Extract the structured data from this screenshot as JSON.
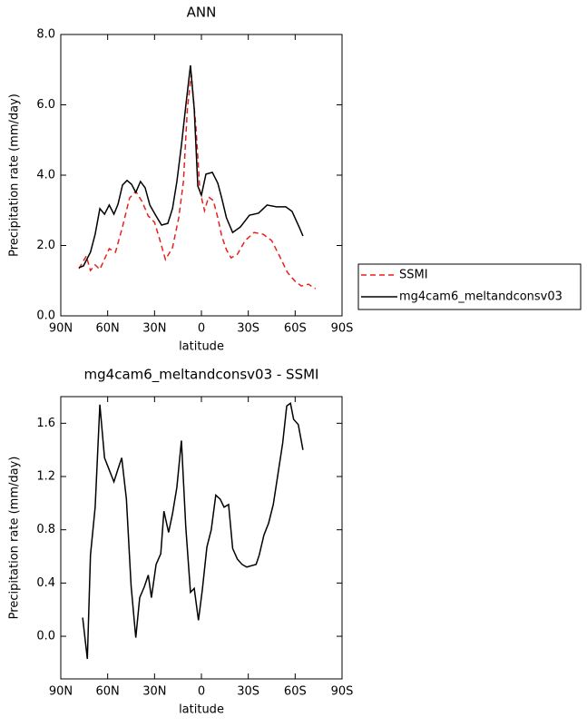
{
  "chart_data": [
    {
      "type": "line",
      "title": "ANN",
      "x_label": "latitude",
      "y_label": "Precipitation rate (mm/day)",
      "xlim": [
        90,
        -90
      ],
      "ylim": [
        0,
        8
      ],
      "xticks": [
        {
          "value": 90,
          "label": "90N"
        },
        {
          "value": 60,
          "label": "60N"
        },
        {
          "value": 30,
          "label": "30N"
        },
        0,
        {
          "value": -30,
          "label": "30S"
        },
        {
          "value": -60,
          "label": "60S"
        },
        {
          "value": -90,
          "label": "90S"
        }
      ],
      "yticks": [
        {
          "value": 0,
          "label": "0.0"
        },
        {
          "value": 2,
          "label": "2.0"
        },
        {
          "value": 4,
          "label": "4.0"
        },
        {
          "value": 6,
          "label": "6.0"
        },
        {
          "value": 8,
          "label": "8.0"
        }
      ],
      "legend": "right",
      "series": [
        {
          "name": "SSMI",
          "color": "#e8201c",
          "dash": true,
          "x": [
            78.4,
            73.7,
            71,
            68,
            65,
            59,
            55,
            50.5,
            46,
            42,
            38,
            34,
            30,
            27,
            23,
            18.5,
            14.5,
            11.5,
            9,
            6.5,
            3.5,
            1,
            -2,
            -4.6,
            -7.6,
            -10.5,
            -13,
            -16,
            -19,
            -23,
            -28,
            -33.7,
            -39.5,
            -45,
            -50,
            -55,
            -60,
            -64,
            -68.5,
            -73
          ],
          "values": [
            1.34,
            1.7,
            1.29,
            1.45,
            1.32,
            1.91,
            1.81,
            2.53,
            3.35,
            3.54,
            3.25,
            2.84,
            2.66,
            2.22,
            1.6,
            1.94,
            2.79,
            3.82,
            5.88,
            6.86,
            5.37,
            3.56,
            2.99,
            3.38,
            3.28,
            2.79,
            2.27,
            1.88,
            1.65,
            1.75,
            2.14,
            2.37,
            2.32,
            2.14,
            1.7,
            1.24,
            0.98,
            0.85,
            0.9,
            0.77
          ]
        },
        {
          "name": "mg4cam6_meltandconsv03",
          "color": "#000000",
          "dash": false,
          "x": [
            78.4,
            75.5,
            71,
            68,
            65,
            62,
            59,
            56,
            53.4,
            50.5,
            47.6,
            44.7,
            42,
            39,
            36,
            33,
            29,
            25.5,
            21.5,
            18.5,
            15.7,
            12.8,
            9.9,
            7,
            4.6,
            2.3,
            0,
            -2.9,
            -7,
            -10.5,
            -13,
            -16,
            -20,
            -25,
            -30.7,
            -36.6,
            -42,
            -48,
            -54,
            -58,
            -62.5,
            -65
          ],
          "values": [
            1.37,
            1.42,
            1.81,
            2.32,
            3.05,
            2.89,
            3.15,
            2.89,
            3.17,
            3.72,
            3.85,
            3.74,
            3.51,
            3.82,
            3.64,
            3.15,
            2.84,
            2.58,
            2.63,
            3.05,
            3.82,
            4.85,
            6.01,
            7.12,
            5.88,
            3.69,
            3.43,
            4.03,
            4.08,
            3.77,
            3.35,
            2.79,
            2.37,
            2.53,
            2.86,
            2.92,
            3.15,
            3.1,
            3.1,
            2.97,
            2.53,
            2.27
          ]
        }
      ]
    },
    {
      "type": "line",
      "title": "mg4cam6_meltandconsv03 - SSMI",
      "x_label": "latitude",
      "y_label": "Precipitation rate (mm/day)",
      "xlim": [
        90,
        -90
      ],
      "ylim": [
        -0.32,
        1.8
      ],
      "xticks": [
        {
          "value": 90,
          "label": "90N"
        },
        {
          "value": 60,
          "label": "60N"
        },
        {
          "value": 30,
          "label": "30N"
        },
        0,
        {
          "value": -30,
          "label": "30S"
        },
        {
          "value": -60,
          "label": "60S"
        },
        {
          "value": -90,
          "label": "90S"
        }
      ],
      "yticks": [
        {
          "value": 0,
          "label": "0.0"
        },
        0.4,
        0.8,
        1.2,
        1.6
      ],
      "series": [
        {
          "color": "#000000",
          "dash": false,
          "x": [
            76,
            73,
            71,
            68,
            65,
            62,
            59,
            56,
            53,
            51,
            48,
            45,
            42,
            39.5,
            36.6,
            34,
            32,
            29,
            26,
            24,
            21,
            18.5,
            15.7,
            12.8,
            10,
            7,
            4.6,
            1.9,
            -0.6,
            -3.5,
            -6.3,
            -9.2,
            -12,
            -14.5,
            -17.4,
            -20,
            -23,
            -26,
            -29,
            -32,
            -35,
            -37,
            -40,
            -43,
            -46,
            -49,
            -52,
            -54.6,
            -57,
            -59,
            -62,
            -65
          ],
          "values": [
            0.14,
            -0.17,
            0.61,
            0.97,
            1.74,
            1.34,
            1.25,
            1.16,
            1.27,
            1.34,
            1.03,
            0.38,
            -0.01,
            0.29,
            0.37,
            0.46,
            0.29,
            0.54,
            0.62,
            0.94,
            0.78,
            0.92,
            1.12,
            1.47,
            0.82,
            0.33,
            0.36,
            0.12,
            0.35,
            0.67,
            0.8,
            1.06,
            1.03,
            0.97,
            0.99,
            0.66,
            0.58,
            0.54,
            0.52,
            0.53,
            0.54,
            0.61,
            0.76,
            0.85,
            0.99,
            1.22,
            1.45,
            1.73,
            1.75,
            1.63,
            1.59,
            1.4
          ]
        }
      ]
    }
  ]
}
